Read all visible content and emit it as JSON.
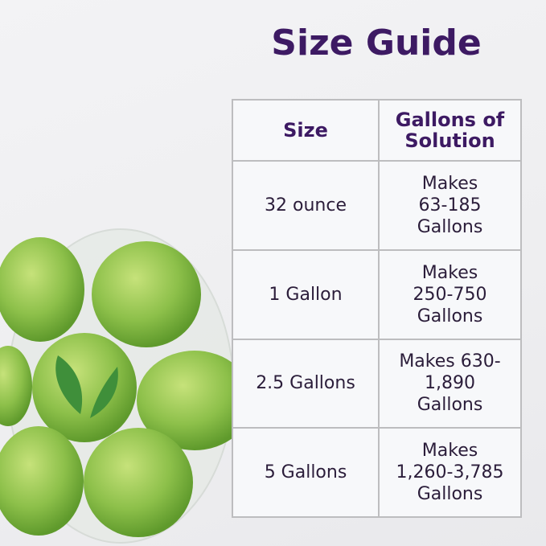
{
  "title": "Size Guide",
  "table": {
    "headers": [
      "Size",
      "Gallons of Solution"
    ],
    "rows": [
      {
        "size": "32 ounce",
        "gallons": "Makes 63-185 Gallons"
      },
      {
        "size": "1 Gallon",
        "gallons": "Makes 250-750 Gallons"
      },
      {
        "size": "2.5 Gallons",
        "gallons": "Makes 630-1,890 Gallons"
      },
      {
        "size": "5 Gallons",
        "gallons": "Makes 1,260-3,785 Gallons"
      }
    ]
  },
  "colors": {
    "title": "#3d1a63",
    "apple": "#8cc152",
    "leaf": "#3f8f3a"
  }
}
